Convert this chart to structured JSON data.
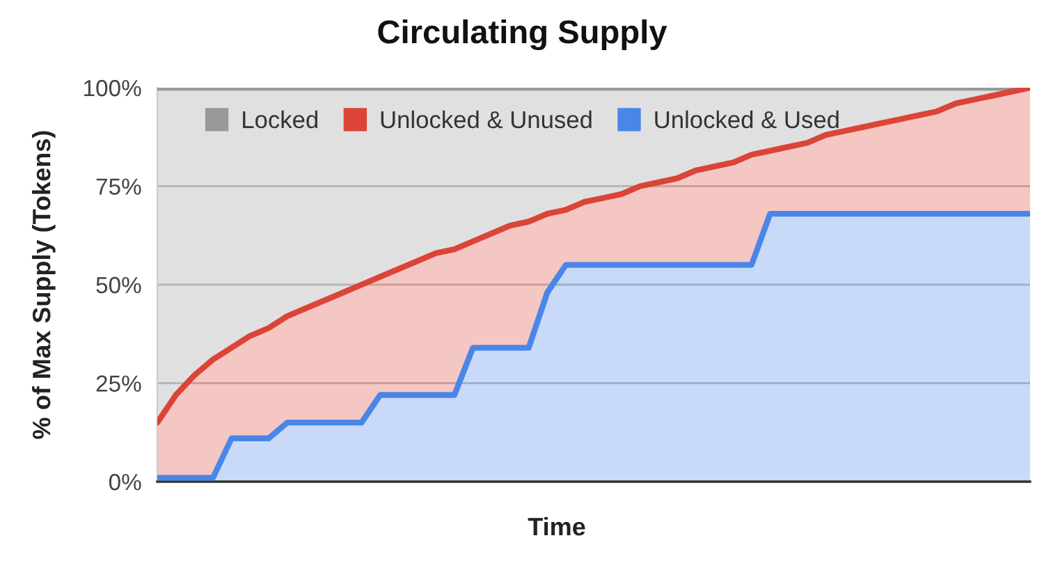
{
  "chart_data": {
    "type": "area",
    "title": "Circulating Supply",
    "xlabel": "Time",
    "ylabel": "% of Max Supply (Tokens)",
    "stacked": true,
    "categories": [
      null,
      null,
      null,
      null,
      null,
      null,
      null,
      null,
      null,
      null,
      null,
      null,
      null,
      null,
      null,
      null,
      null,
      null,
      null,
      null,
      null,
      null,
      null,
      null,
      null,
      null,
      null,
      null,
      null,
      null,
      null,
      null,
      null,
      null,
      null,
      null,
      null,
      null,
      null,
      null,
      null,
      null,
      null,
      null,
      null,
      null,
      null,
      null
    ],
    "series": [
      {
        "name": "Unlocked & Used",
        "color": "#4a86e8",
        "values": [
          1,
          1,
          1,
          1,
          11,
          11,
          11,
          15,
          15,
          15,
          15,
          15,
          22,
          22,
          22,
          22,
          22,
          34,
          34,
          34,
          34,
          48,
          55,
          55,
          55,
          55,
          55,
          55,
          55,
          55,
          55,
          55,
          55,
          68,
          68,
          68,
          68,
          68,
          68,
          68,
          68,
          68,
          68,
          68,
          68,
          68,
          68,
          68
        ]
      },
      {
        "name": "Unlocked & Unused",
        "color": "#db4437",
        "values": [
          14,
          21,
          26,
          30,
          23,
          26,
          28,
          27,
          29,
          31,
          33,
          35,
          30,
          32,
          34,
          36,
          37,
          27,
          29,
          31,
          32,
          20,
          14,
          16,
          17,
          18,
          20,
          21,
          22,
          24,
          25,
          26,
          28,
          16,
          17,
          18,
          20,
          21,
          22,
          23,
          24,
          25,
          26,
          28,
          29,
          30,
          31,
          32
        ]
      },
      {
        "name": "Locked",
        "color": "#999999",
        "values": [
          85,
          78,
          73,
          69,
          66,
          63,
          61,
          58,
          56,
          54,
          52,
          50,
          48,
          46,
          44,
          42,
          41,
          39,
          37,
          35,
          34,
          32,
          31,
          29,
          28,
          27,
          25,
          24,
          23,
          21,
          20,
          19,
          17,
          16,
          15,
          14,
          12,
          11,
          10,
          9,
          8,
          7,
          6,
          4,
          3,
          2,
          1,
          0
        ]
      }
    ],
    "ylim": [
      0,
      100
    ],
    "yticks": [
      {
        "value": 0,
        "label": "0%"
      },
      {
        "value": 25,
        "label": "25%"
      },
      {
        "value": 50,
        "label": "50%"
      },
      {
        "value": 75,
        "label": "75%"
      },
      {
        "value": 100,
        "label": "100%"
      }
    ],
    "tick_labels": "y",
    "grid": "y",
    "legend": "top left",
    "line_style": "solid",
    "marker": "none"
  }
}
